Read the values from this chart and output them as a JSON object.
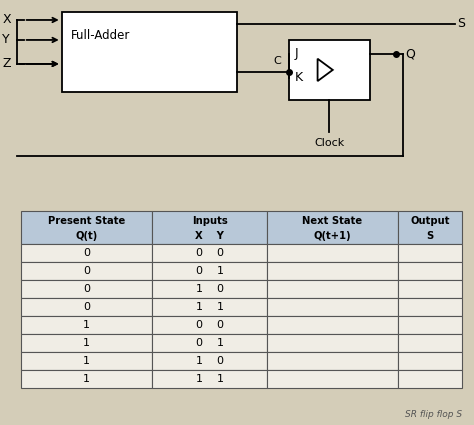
{
  "bg_color": "#d4cdb8",
  "table_bg": "#e8e4d8",
  "table_header_bg": "#b8c8d8",
  "table_cell_bg": "#f0ede5",
  "table_border_color": "#555555",
  "headers_line1": [
    "Present State",
    "Inputs",
    "Next State",
    "Output"
  ],
  "headers_line2": [
    "Q(t)",
    "X    Y",
    "Q(t+1)",
    "S"
  ],
  "rows_col1": [
    "0",
    "0",
    "0",
    "0",
    "1",
    "1",
    "1",
    "1"
  ],
  "rows_col2": [
    "0    0",
    "0    1",
    "1    0",
    "1    1",
    "0    0",
    "0    1",
    "1    0",
    "1    1"
  ],
  "circuit_box_label": "Full-Adder",
  "inputs": [
    "X",
    "Y",
    "Z"
  ],
  "clock_label": "Clock",
  "note": "SR flip flop S"
}
